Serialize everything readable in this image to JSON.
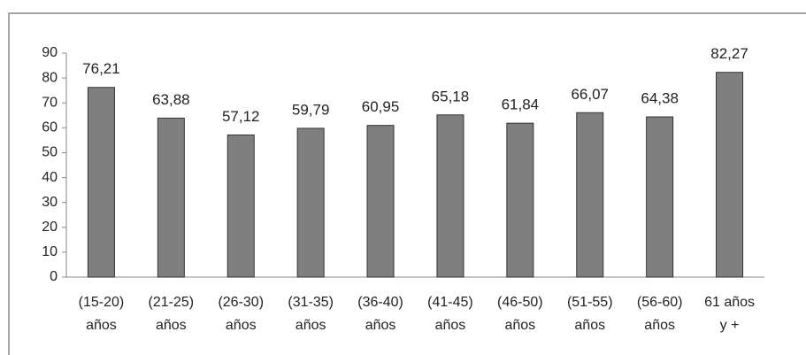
{
  "chart_data": {
    "type": "bar",
    "categories": [
      [
        "(15-20)",
        "años"
      ],
      [
        "(21-25)",
        "años"
      ],
      [
        "(26-30)",
        "años"
      ],
      [
        "(31-35)",
        "años"
      ],
      [
        "(36-40)",
        "años"
      ],
      [
        "(41-45)",
        "años"
      ],
      [
        "(46-50)",
        "años"
      ],
      [
        "(51-55)",
        "años"
      ],
      [
        "(56-60)",
        "años"
      ],
      [
        "61 años",
        "y +"
      ]
    ],
    "values": [
      76.21,
      63.88,
      57.12,
      59.79,
      60.95,
      65.18,
      61.84,
      66.07,
      64.38,
      82.27
    ],
    "value_labels": [
      "76,21",
      "63,88",
      "57,12",
      "59,79",
      "60,95",
      "65,18",
      "61,84",
      "66,07",
      "64,38",
      "82,27"
    ],
    "color": "#7f7f7f",
    "ylim": [
      0,
      90
    ],
    "yticks": [
      0,
      10,
      20,
      30,
      40,
      50,
      60,
      70,
      80,
      90
    ],
    "grid": false
  }
}
